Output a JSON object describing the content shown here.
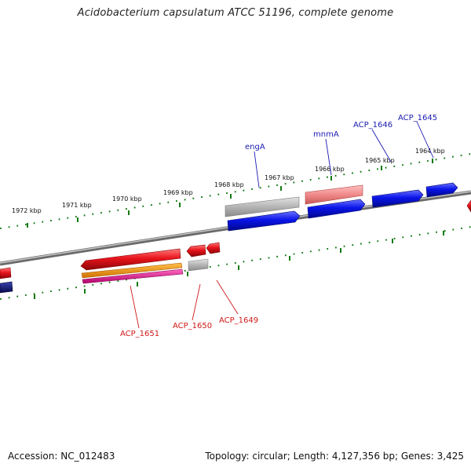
{
  "title": "Acidobacterium capsulatum ATCC 51196, complete genome",
  "footer": {
    "accession": "Accession: NC_012483",
    "topology": "Topology: circular; Length: 4,127,356 bp; Genes: 3,425"
  },
  "ticks": [
    "1964 kbp",
    "1965 kbp",
    "1966 kbp",
    "1967 kbp",
    "1968 kbp",
    "1969 kbp",
    "1970 kbp",
    "1971 kbp",
    "1972 kbp"
  ],
  "gene_labels": {
    "top": [
      "ACP_1645",
      "ACP_1646",
      "mnmA",
      "engA"
    ],
    "bottom": [
      "ACP_1651",
      "ACP_1650",
      "ACP_1649"
    ]
  },
  "colors": {
    "forward_gene": "#0a14e8",
    "reverse_gene": "#e8141c",
    "pseudo": "#b8b8b8",
    "rna": "#ff9999",
    "orange_feature": "#f08a00",
    "magenta_feature": "#e8148c",
    "navy_feature": "#101a7a",
    "axis": "#8a8a8a",
    "scale": "#137a13",
    "top_label": "#1a1ab0",
    "bottom_label": "#d01818"
  }
}
